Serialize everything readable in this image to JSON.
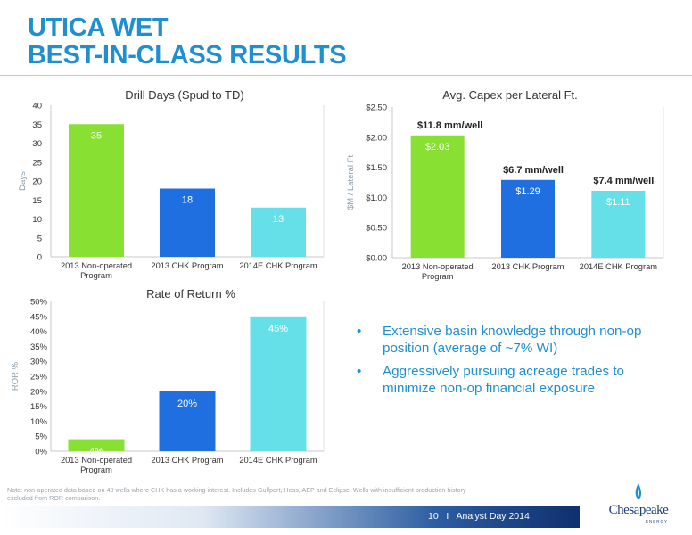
{
  "page": {
    "title_line1": "UTICA WET",
    "title_line2": "BEST-IN-CLASS RESULTS",
    "bullets": [
      "Extensive basin knowledge through non-op position (average of ~7% WI)",
      "Aggressively pursuing acreage trades to minimize non-op financial exposure"
    ],
    "bullet_glyph": "•",
    "note": "Note: non-operated data based on 49 wells where CHK has a working interest. Includes Gulfport, Hess, AEP and Eclipse. Wells with insufficient production history excluded from ROR comparison.",
    "footer": "10   I   Analyst Day 2014",
    "logo_text": "Chesapeake",
    "logo_sub": "ENERGY",
    "colors": {
      "title": "#1f8fd0",
      "green": "#88e033",
      "blue": "#1f6fe0",
      "cyan": "#66e0e8"
    }
  },
  "chart_data": [
    {
      "type": "bar",
      "title": "Drill Days (Spud to TD)",
      "ylabel": "Days",
      "categories": [
        [
          "2013 Non-operated",
          "Program"
        ],
        [
          "2013 CHK Program"
        ],
        [
          "2014E CHK Program"
        ]
      ],
      "values": [
        35,
        18,
        13
      ],
      "value_labels": [
        "35",
        "18",
        "13"
      ],
      "annotations": [],
      "ylim": [
        0,
        40
      ],
      "yticks": [
        0,
        5,
        10,
        15,
        20,
        25,
        30,
        35,
        40
      ],
      "ytick_labels": [
        "0",
        "5",
        "10",
        "15",
        "20",
        "25",
        "30",
        "35",
        "40"
      ],
      "colors": [
        "#88e033",
        "#1f6fe0",
        "#66e0e8"
      ]
    },
    {
      "type": "bar",
      "title": "Avg. Capex per Lateral Ft.",
      "ylabel": "$M / Lateral Ft",
      "categories": [
        [
          "2013 Non-operated",
          "Program"
        ],
        [
          "2013 CHK Program"
        ],
        [
          "2014E CHK Program"
        ]
      ],
      "values": [
        2.03,
        1.29,
        1.11
      ],
      "value_labels": [
        "$2.03",
        "$1.29",
        "$1.11"
      ],
      "annotations": [
        "$11.8 mm/well",
        "$6.7 mm/well",
        "$7.4 mm/well"
      ],
      "ylim": [
        0,
        2.5
      ],
      "yticks": [
        0,
        0.5,
        1,
        1.5,
        2,
        2.5
      ],
      "ytick_labels": [
        "$0.00",
        "$0.50",
        "$1.00",
        "$1.50",
        "$2.00",
        "$2.50"
      ],
      "colors": [
        "#88e033",
        "#1f6fe0",
        "#66e0e8"
      ]
    },
    {
      "type": "bar",
      "title": "Rate of Return %",
      "ylabel": "ROR %",
      "categories": [
        [
          "2013 Non-operated",
          "Program"
        ],
        [
          "2013 CHK Program"
        ],
        [
          "2014E CHK Program"
        ]
      ],
      "values": [
        4,
        20,
        45
      ],
      "value_labels": [
        "4%",
        "20%",
        "45%"
      ],
      "annotations": [],
      "ylim": [
        0,
        50
      ],
      "yticks": [
        0,
        5,
        10,
        15,
        20,
        25,
        30,
        35,
        40,
        45,
        50
      ],
      "ytick_labels": [
        "0%",
        "5%",
        "10%",
        "15%",
        "20%",
        "25%",
        "30%",
        "35%",
        "40%",
        "45%",
        "50%"
      ],
      "colors": [
        "#88e033",
        "#1f6fe0",
        "#66e0e8"
      ]
    }
  ]
}
